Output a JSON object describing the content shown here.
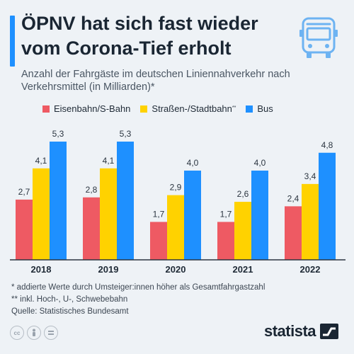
{
  "header": {
    "title": "ÖPNV hat sich fast wieder vom Corona-Tief erholt",
    "subtitle": "Anzahl der Fahrgäste im deutschen Liniennahverkehr nach Verkehrsmittel (in Milliarden)*",
    "icon": "bus-icon"
  },
  "legend": {
    "items": [
      {
        "label": "Eisenbahn/S-Bahn",
        "sup": "",
        "color": "#ee5a63"
      },
      {
        "label": "Straßen-/Stadtbahn",
        "sup": "**",
        "color": "#ffd200"
      },
      {
        "label": "Bus",
        "sup": "",
        "color": "#1e90ff"
      }
    ]
  },
  "chart_data": {
    "type": "bar",
    "categories": [
      "2018",
      "2019",
      "2020",
      "2021",
      "2022"
    ],
    "series": [
      {
        "name": "Eisenbahn/S-Bahn",
        "color": "#ee5a63",
        "values": [
          2.7,
          2.8,
          1.7,
          1.7,
          2.4
        ],
        "labels": [
          "2,7",
          "2,8",
          "1,7",
          "1,7",
          "2,4"
        ]
      },
      {
        "name": "Straßen-/Stadtbahn",
        "color": "#ffd200",
        "values": [
          4.1,
          4.1,
          2.9,
          2.6,
          3.4
        ],
        "labels": [
          "4,1",
          "4,1",
          "2,9",
          "2,6",
          "3,4"
        ]
      },
      {
        "name": "Bus",
        "color": "#1e90ff",
        "values": [
          5.3,
          5.3,
          4.0,
          4.0,
          4.8
        ],
        "labels": [
          "5,3",
          "5,3",
          "4,0",
          "4,0",
          "4,8"
        ]
      }
    ],
    "ylim": [
      0,
      5.3
    ],
    "grid": false,
    "legend_position": "top"
  },
  "footnotes": [
    "*  addierte Werte durch Umsteiger:innen höher als Gesamtfahrgastzahl",
    "** inkl. Hoch-, U-, Schwebebahn",
    "Quelle: Statistisches Bundesamt"
  ],
  "branding": {
    "name": "statista",
    "license_icons": [
      "cc-icon",
      "person-icon",
      "equals-icon"
    ]
  }
}
